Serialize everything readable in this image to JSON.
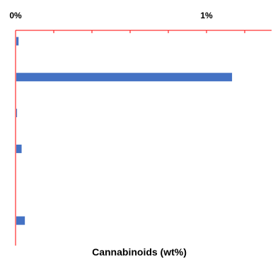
{
  "chart_data": {
    "type": "bar",
    "orientation": "horizontal",
    "categories": [
      "",
      "",
      "",
      "",
      "",
      ""
    ],
    "series": [
      {
        "values": [
          0.012,
          1.13,
          0.004,
          0.028,
          0,
          0.045
        ]
      }
    ],
    "xlim": [
      0,
      1.5
    ],
    "xlabel": "Cannabinoids (wt%)",
    "ylabel": "",
    "title": "",
    "tick_labels": [
      "0%",
      "1%"
    ],
    "x_axis_position": "top",
    "grid": false,
    "legend": "none",
    "colors": {
      "bar": "#4472C4",
      "axis": "#FF0000",
      "text": "#000000"
    }
  }
}
